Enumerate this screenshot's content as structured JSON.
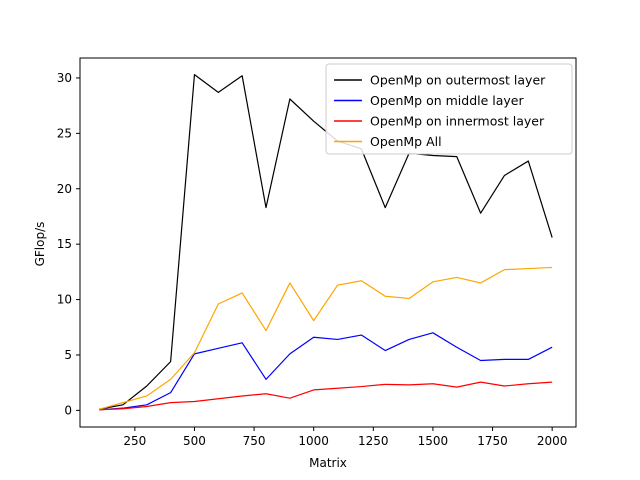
{
  "chart_data": {
    "type": "line",
    "title": "",
    "xlabel": "Matrix",
    "ylabel": "GFlop/s",
    "xlim": [
      20,
      2100
    ],
    "ylim": [
      -1.5,
      31.8
    ],
    "grid": false,
    "legend_position": "top-right",
    "x": [
      100,
      200,
      300,
      400,
      500,
      600,
      700,
      800,
      900,
      1000,
      1100,
      1200,
      1300,
      1400,
      1500,
      1600,
      1700,
      1800,
      1900,
      2000
    ],
    "x_ticks": [
      250,
      500,
      750,
      1000,
      1250,
      1500,
      1750,
      2000
    ],
    "x_tick_labels": [
      "250",
      "500",
      "750",
      "1000",
      "1250",
      "1500",
      "1750",
      "2000"
    ],
    "y_ticks": [
      0,
      5,
      10,
      15,
      20,
      25,
      30
    ],
    "y_tick_labels": [
      "0",
      "5",
      "10",
      "15",
      "20",
      "25",
      "30"
    ],
    "series": [
      {
        "name": "OpenMp on outermost layer",
        "color": "#000000",
        "values": [
          0.1,
          0.5,
          2.2,
          4.4,
          30.3,
          28.7,
          30.2,
          18.3,
          28.1,
          26.1,
          24.3,
          23.6,
          18.3,
          23.2,
          23.0,
          22.9,
          17.8,
          21.2,
          22.5,
          15.6
        ]
      },
      {
        "name": "OpenMp on middle layer",
        "color": "#0000ff",
        "values": [
          0.05,
          0.2,
          0.5,
          1.6,
          5.1,
          5.6,
          6.1,
          2.8,
          5.1,
          6.6,
          6.4,
          6.8,
          5.4,
          6.4,
          7.0,
          5.7,
          4.5,
          4.6,
          4.6,
          5.7
        ]
      },
      {
        "name": "OpenMp on innermost layer",
        "color": "#ff0000",
        "values": [
          0.05,
          0.15,
          0.35,
          0.7,
          0.8,
          1.05,
          1.3,
          1.5,
          1.1,
          1.85,
          2.0,
          2.15,
          2.35,
          2.3,
          2.4,
          2.1,
          2.55,
          2.2,
          2.4,
          2.55
        ]
      },
      {
        "name": "OpenMp All",
        "color": "#ffa500",
        "values": [
          0.1,
          0.7,
          1.3,
          2.8,
          5.2,
          9.6,
          10.6,
          7.2,
          11.5,
          8.1,
          11.3,
          11.7,
          10.3,
          10.1,
          11.6,
          12.0,
          11.5,
          12.7,
          12.8,
          12.9
        ]
      }
    ]
  }
}
